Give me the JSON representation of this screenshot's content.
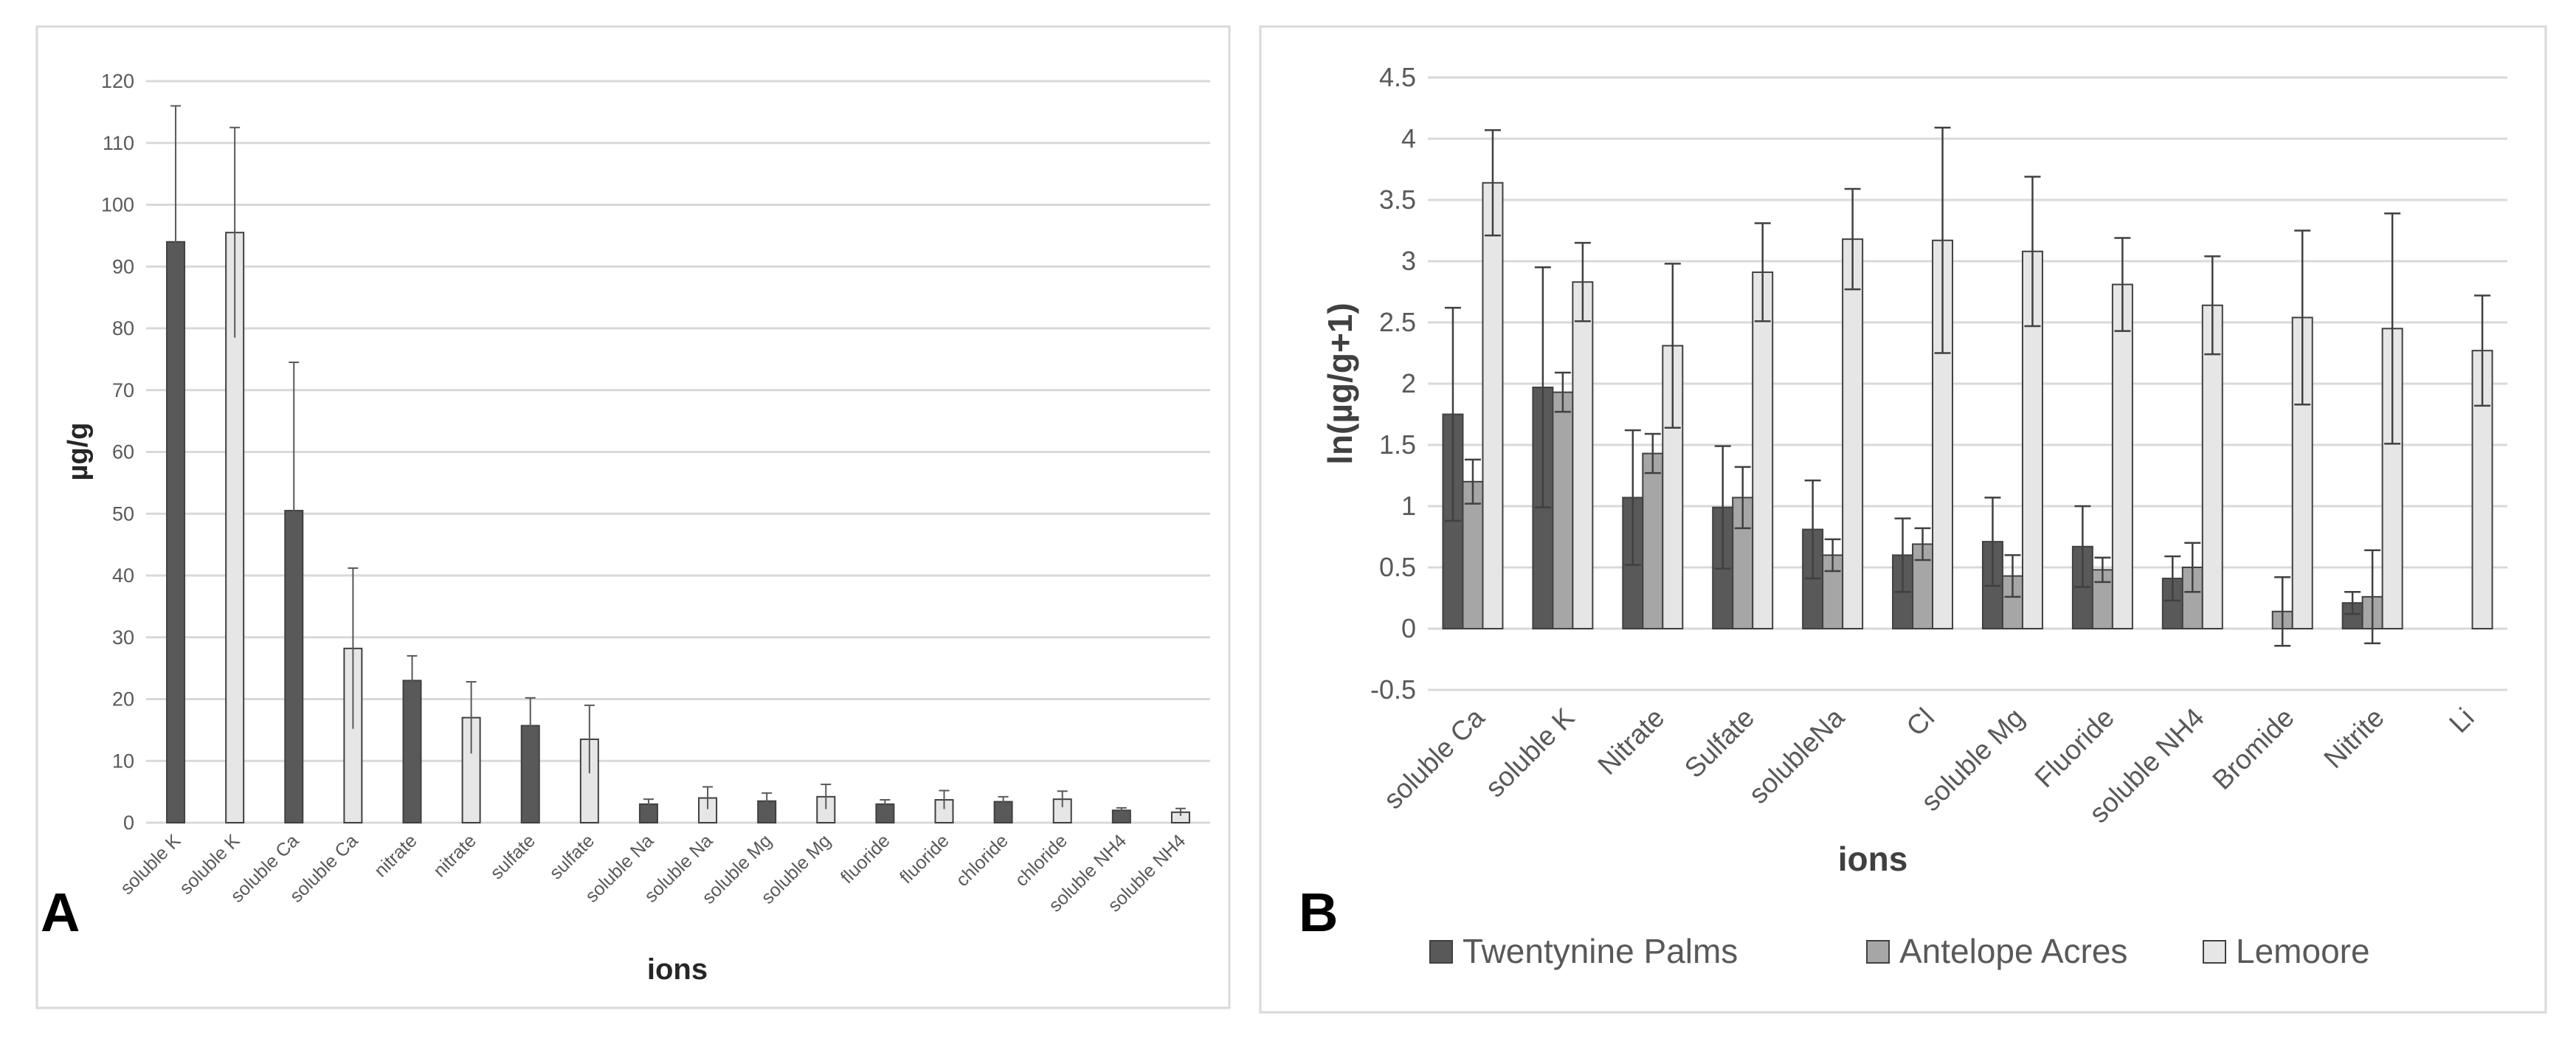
{
  "colors": {
    "dark": "#595959",
    "medium": "#a6a6a6",
    "light": "#e6e6e6",
    "edge": "#404040",
    "grid": "#d9d9d9",
    "axis_text": "#595959",
    "frame": "#d9d9d9"
  },
  "chart_data": [
    {
      "panel": "A",
      "type": "bar",
      "title": "",
      "xlabel": "ions",
      "ylabel": "µg/g",
      "ylim": [
        0,
        120
      ],
      "yticks": [
        0,
        10,
        20,
        30,
        40,
        50,
        60,
        70,
        80,
        90,
        100,
        110,
        120
      ],
      "grid": true,
      "categories": [
        "soluble K",
        "soluble K",
        "soluble Ca",
        "soluble Ca",
        "nitrate",
        "nitrate",
        "sulfate",
        "sulfate",
        "soluble Na",
        "soluble Na",
        "soluble Mg",
        "soluble Mg",
        "fluoride",
        "fluoride",
        "chloride",
        "chloride",
        "soluble NH4",
        "soluble NH4"
      ],
      "values": [
        94,
        95.5,
        50.5,
        28.2,
        23,
        17,
        15.7,
        13.5,
        3,
        4,
        3.5,
        4.2,
        3,
        3.7,
        3.4,
        3.8,
        2,
        1.7
      ],
      "errors": [
        22,
        17,
        24,
        13,
        4,
        5.8,
        4.5,
        5.5,
        0.8,
        1.8,
        1.3,
        2,
        0.7,
        1.5,
        0.8,
        1.3,
        0.4,
        0.6
      ],
      "shades": [
        "dark",
        "light",
        "dark",
        "light",
        "dark",
        "light",
        "dark",
        "light",
        "dark",
        "light",
        "dark",
        "light",
        "dark",
        "light",
        "dark",
        "light",
        "dark",
        "light"
      ]
    },
    {
      "panel": "B",
      "type": "bar",
      "title": "",
      "xlabel": "ions",
      "ylabel": "ln(µg/g+1)",
      "ylim": [
        -0.5,
        4.5
      ],
      "yticks": [
        -0.5,
        0,
        0.5,
        1,
        1.5,
        2,
        2.5,
        3,
        3.5,
        4,
        4.5
      ],
      "grid": true,
      "legend_position": "bottom",
      "categories": [
        "soluble Ca",
        "soluble K",
        "Nitrate",
        "Sulfate",
        "solubleNa",
        "Cl",
        "soluble Mg",
        "Fluoride",
        "soluble NH4",
        "Bromide",
        "Nitrite",
        "Li"
      ],
      "series": [
        {
          "name": "Twentynine Palms",
          "shade": "dark",
          "values": [
            1.75,
            1.97,
            1.07,
            0.99,
            0.81,
            0.6,
            0.71,
            0.67,
            0.41,
            0,
            0.21,
            0
          ],
          "errors": [
            0.87,
            0.98,
            0.55,
            0.5,
            0.4,
            0.3,
            0.36,
            0.33,
            0.18,
            0,
            0.09,
            0
          ]
        },
        {
          "name": "Antelope Acres",
          "shade": "medium",
          "values": [
            1.2,
            1.93,
            1.43,
            1.07,
            0.6,
            0.69,
            0.43,
            0.48,
            0.5,
            0.14,
            0.26,
            0
          ],
          "errors": [
            0.18,
            0.16,
            0.16,
            0.25,
            0.13,
            0.13,
            0.17,
            0.1,
            0.2,
            0.28,
            0.38,
            0
          ]
        },
        {
          "name": "Lemoore",
          "shade": "light",
          "values": [
            3.64,
            2.83,
            2.31,
            2.91,
            3.18,
            3.17,
            3.08,
            2.81,
            2.64,
            2.54,
            2.45,
            2.27
          ],
          "errors": [
            0.43,
            0.32,
            0.67,
            0.4,
            0.41,
            0.92,
            0.61,
            0.38,
            0.4,
            0.71,
            0.94,
            0.45
          ]
        }
      ]
    }
  ]
}
